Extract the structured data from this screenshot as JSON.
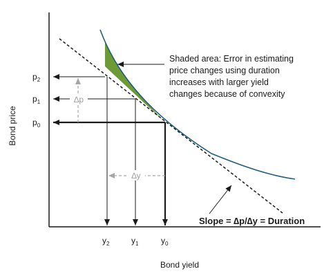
{
  "diagram": {
    "y_axis_label": "Bond price",
    "x_axis_label": "Bond yield",
    "price_labels": [
      {
        "main": "p",
        "sub": "2"
      },
      {
        "main": "p",
        "sub": "1"
      },
      {
        "main": "p",
        "sub": "0"
      }
    ],
    "yield_labels": [
      {
        "main": "y",
        "sub": "2"
      },
      {
        "main": "y",
        "sub": "1"
      },
      {
        "main": "y",
        "sub": "0"
      }
    ],
    "delta_p": "∆p",
    "delta_y": "∆y",
    "annotation_lines": [
      "Shaded area: Error in estimating",
      "price changes using duration",
      "increases with larger yield",
      "changes because of convexity"
    ],
    "slope_label": "Slope = ∆p/∆y = Duration",
    "colors": {
      "curve": "#1d5d7e",
      "shaded_area": "#6e9a35",
      "axis": "#1a1a1a",
      "dashed_arrows": "#a6a6a6"
    }
  }
}
